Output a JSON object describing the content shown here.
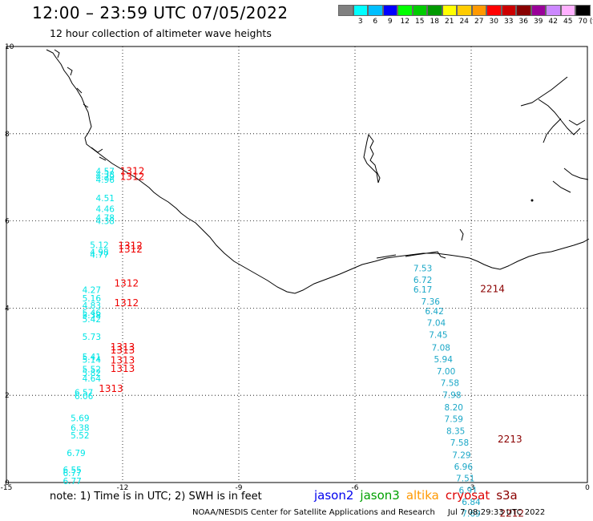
{
  "header": {
    "title": "12:00 – 23:59 UTC 07/05/2022",
    "subtitle": "12 hour collection of altimeter wave heights"
  },
  "colorbar": {
    "unit": "(ft)",
    "colors": [
      "#808080",
      "#00ffff",
      "#00bfff",
      "#0000ff",
      "#00ff00",
      "#00cc00",
      "#009900",
      "#ffff00",
      "#ffcc00",
      "#ff9900",
      "#ff0000",
      "#cc0000",
      "#880000",
      "#990099",
      "#cc88ff",
      "#ffb0ff",
      "#000000"
    ],
    "labels": [
      "3",
      "6",
      "9",
      "12",
      "15",
      "18",
      "21",
      "24",
      "27",
      "30",
      "33",
      "36",
      "39",
      "42",
      "45",
      "70"
    ]
  },
  "axes": {
    "x_ticks": [
      "-15",
      "-12",
      "-9",
      "-6",
      "-3",
      "0"
    ],
    "y_ticks": [
      "0",
      "2",
      "4",
      "6",
      "8",
      "10"
    ],
    "xlim": [
      -15,
      0
    ],
    "ylim": [
      0,
      10
    ],
    "grid": "dotted"
  },
  "observations": {
    "jason3_cyan": [
      {
        "lon": -12.45,
        "lat": 7.12,
        "v": "4.57"
      },
      {
        "lon": -12.45,
        "lat": 7.05,
        "v": "4.38"
      },
      {
        "lon": -12.45,
        "lat": 6.99,
        "v": "4.79"
      },
      {
        "lon": -12.45,
        "lat": 6.93,
        "v": "4.96"
      },
      {
        "lon": -12.45,
        "lat": 6.51,
        "v": "4.51"
      },
      {
        "lon": -12.45,
        "lat": 6.26,
        "v": "4.46"
      },
      {
        "lon": -12.45,
        "lat": 6.06,
        "v": "4.78"
      },
      {
        "lon": -12.45,
        "lat": 5.98,
        "v": "4.38"
      },
      {
        "lon": -12.6,
        "lat": 5.43,
        "v": "5.12"
      },
      {
        "lon": -12.6,
        "lat": 5.27,
        "v": "4.98"
      },
      {
        "lon": -12.6,
        "lat": 5.21,
        "v": "4.77"
      },
      {
        "lon": -12.8,
        "lat": 4.4,
        "v": "4.27"
      },
      {
        "lon": -12.8,
        "lat": 4.21,
        "v": "5.16"
      },
      {
        "lon": -12.8,
        "lat": 4.04,
        "v": "4.83"
      },
      {
        "lon": -12.8,
        "lat": 3.88,
        "v": "5.46"
      },
      {
        "lon": -12.8,
        "lat": 3.82,
        "v": "5.38"
      },
      {
        "lon": -12.8,
        "lat": 3.73,
        "v": "5.42"
      },
      {
        "lon": -12.8,
        "lat": 3.33,
        "v": "5.73"
      },
      {
        "lon": -12.8,
        "lat": 2.87,
        "v": "5.41"
      },
      {
        "lon": -12.8,
        "lat": 2.8,
        "v": "5.14"
      },
      {
        "lon": -12.8,
        "lat": 2.58,
        "v": "5.52"
      },
      {
        "lon": -12.8,
        "lat": 2.5,
        "v": "5.82"
      },
      {
        "lon": -12.8,
        "lat": 2.37,
        "v": "4.64"
      },
      {
        "lon": -13.0,
        "lat": 2.05,
        "v": "6.57"
      },
      {
        "lon": -13.0,
        "lat": 1.97,
        "v": "6.06"
      },
      {
        "lon": -13.1,
        "lat": 1.46,
        "v": "5.69"
      },
      {
        "lon": -13.1,
        "lat": 1.24,
        "v": "6.38"
      },
      {
        "lon": -13.1,
        "lat": 1.07,
        "v": "5.52"
      },
      {
        "lon": -13.2,
        "lat": 0.66,
        "v": "6.79"
      },
      {
        "lon": -13.3,
        "lat": 0.28,
        "v": "6.55"
      },
      {
        "lon": -13.3,
        "lat": 0.2,
        "v": "6.77"
      },
      {
        "lon": -13.3,
        "lat": 0.02,
        "v": "6.77"
      }
    ],
    "jason2_steel": [
      {
        "lon": -4.25,
        "lat": 4.9,
        "v": "7.53"
      },
      {
        "lon": -4.25,
        "lat": 4.63,
        "v": "6.72"
      },
      {
        "lon": -4.25,
        "lat": 4.41,
        "v": "6.17"
      },
      {
        "lon": -4.05,
        "lat": 4.14,
        "v": "7.36"
      },
      {
        "lon": -3.95,
        "lat": 3.92,
        "v": "6.42"
      },
      {
        "lon": -3.9,
        "lat": 3.65,
        "v": "7.04"
      },
      {
        "lon": -3.85,
        "lat": 3.37,
        "v": "7.45"
      },
      {
        "lon": -3.78,
        "lat": 3.08,
        "v": "7.08"
      },
      {
        "lon": -3.72,
        "lat": 2.81,
        "v": "5.94"
      },
      {
        "lon": -3.65,
        "lat": 2.54,
        "v": "7.00"
      },
      {
        "lon": -3.55,
        "lat": 2.27,
        "v": "7.58"
      },
      {
        "lon": -3.5,
        "lat": 1.99,
        "v": "7.98"
      },
      {
        "lon": -3.45,
        "lat": 1.71,
        "v": "8.20"
      },
      {
        "lon": -3.45,
        "lat": 1.44,
        "v": "7.59"
      },
      {
        "lon": -3.4,
        "lat": 1.17,
        "v": "8.35"
      },
      {
        "lon": -3.3,
        "lat": 0.9,
        "v": "7.58"
      },
      {
        "lon": -3.25,
        "lat": 0.62,
        "v": "7.29"
      },
      {
        "lon": -3.2,
        "lat": 0.35,
        "v": "6.96"
      },
      {
        "lon": -3.15,
        "lat": 0.08,
        "v": "7.51"
      },
      {
        "lon": -3.08,
        "lat": -0.19,
        "v": "6.91"
      },
      {
        "lon": -3.0,
        "lat": -0.46,
        "v": "6.84"
      },
      {
        "lon": -3.0,
        "lat": -0.73,
        "v": "7.69"
      }
    ],
    "red_times": [
      {
        "lon": -11.75,
        "lat": 7.13,
        "v": "1312"
      },
      {
        "lon": -11.75,
        "lat": 7.0,
        "v": "1312"
      },
      {
        "lon": -11.8,
        "lat": 5.42,
        "v": "1312"
      },
      {
        "lon": -11.8,
        "lat": 5.34,
        "v": "1312"
      },
      {
        "lon": -11.9,
        "lat": 4.56,
        "v": "1312"
      },
      {
        "lon": -11.9,
        "lat": 4.11,
        "v": "1312"
      },
      {
        "lon": -12.0,
        "lat": 3.1,
        "v": "1313"
      },
      {
        "lon": -12.0,
        "lat": 3.02,
        "v": "1313"
      },
      {
        "lon": -12.0,
        "lat": 2.79,
        "v": "1313"
      },
      {
        "lon": -12.0,
        "lat": 2.6,
        "v": "1313"
      },
      {
        "lon": -12.3,
        "lat": 2.14,
        "v": "1313"
      }
    ],
    "darkred_times": [
      {
        "lon": -2.45,
        "lat": 4.43,
        "v": "2214"
      },
      {
        "lon": -2.0,
        "lat": 0.98,
        "v": "2213"
      },
      {
        "lon": -1.95,
        "lat": -0.72,
        "v": "2212"
      }
    ]
  },
  "series_colors": {
    "jason3_cyan": "#00e5e5",
    "jason2_steel": "#1aa7c7",
    "red_times": "#ee0000",
    "darkred_times": "#8b0000"
  },
  "note": "note:  1) Time is in UTC;  2) SWH is in feet",
  "legend": [
    {
      "label": "jason2",
      "color": "#0000ee"
    },
    {
      "label": "jason3",
      "color": "#00a000"
    },
    {
      "label": "altika",
      "color": "#ff9900"
    },
    {
      "label": "cryosat",
      "color": "#dd0000"
    },
    {
      "label": "s3a",
      "color": "#8b0000"
    }
  ],
  "footer": {
    "credit": "NOAA/NESDIS Center for Satellite Applications and Research",
    "timestamp": "Jul  7 08:29:33 UTC 2022"
  }
}
